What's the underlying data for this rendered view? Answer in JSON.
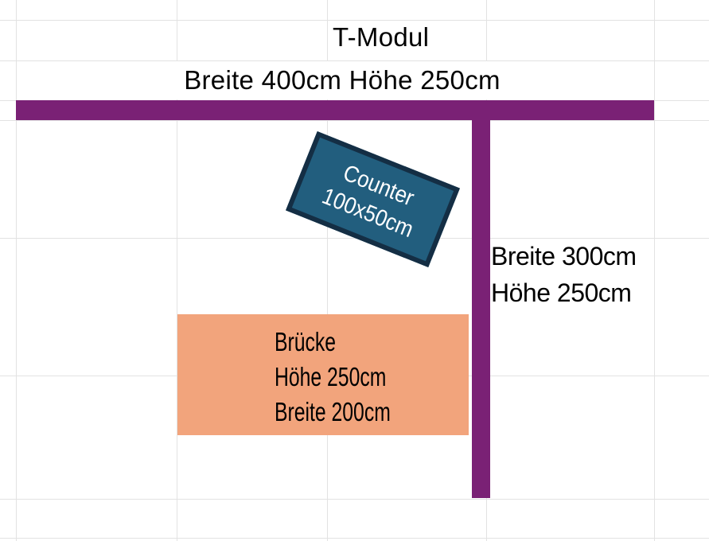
{
  "titles": {
    "main": "T-Modul",
    "dimensions": "Breite 400cm Höhe 250cm"
  },
  "right_wall": {
    "line1": "Breite 300cm",
    "line2": "Höhe 250cm"
  },
  "counter": {
    "line1": "Counter",
    "line2": "100x50cm"
  },
  "bruecke": {
    "line1": "Brücke",
    "line2": "Höhe 250cm",
    "line3": "Breite 200cm"
  },
  "colors": {
    "wall": "#7a2175",
    "counter_fill": "#225e7e",
    "counter_border": "#142e44",
    "counter_text": "#ffffff",
    "bruecke_fill": "#f2a47c",
    "gridline": "#e2e2e2",
    "text": "#000000"
  }
}
